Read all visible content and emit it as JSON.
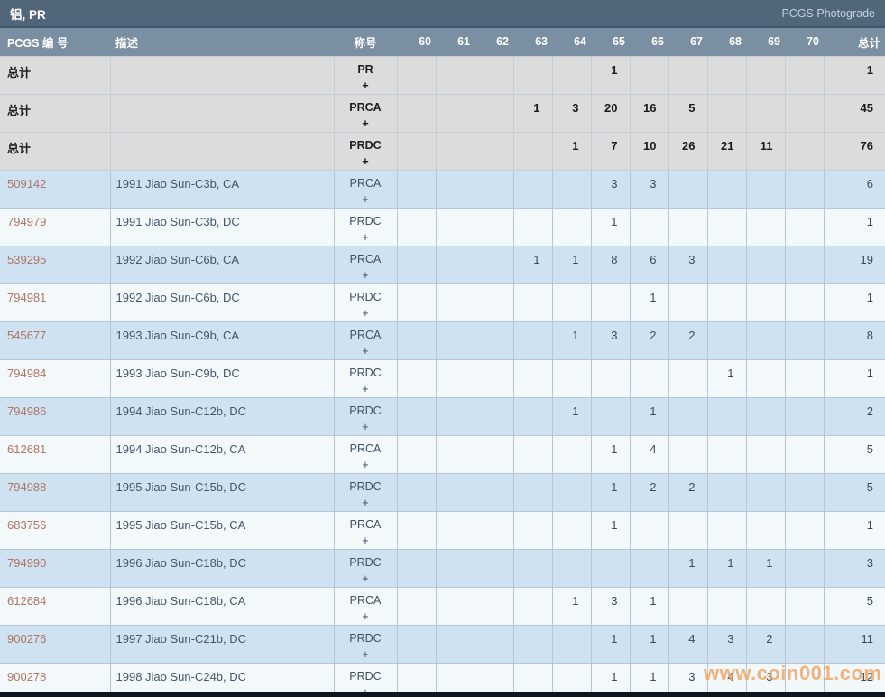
{
  "title_bar": {
    "title": "铝, PR",
    "link": "PCGS Photograde"
  },
  "table": {
    "columns": [
      "PCGS 编 号",
      "描述",
      "称号",
      "60",
      "61",
      "62",
      "63",
      "64",
      "65",
      "66",
      "67",
      "68",
      "69",
      "70",
      "总计"
    ],
    "total_label": "总计",
    "plus": "+",
    "total_rows": [
      {
        "designation": "PR",
        "grades": [
          "",
          "",
          "",
          "",
          "",
          "1",
          "",
          "",
          "",
          "",
          ""
        ],
        "total": "1"
      },
      {
        "designation": "PRCA",
        "grades": [
          "",
          "",
          "",
          "1",
          "3",
          "20",
          "16",
          "5",
          "",
          "",
          ""
        ],
        "total": "45"
      },
      {
        "designation": "PRDC",
        "grades": [
          "",
          "",
          "",
          "",
          "1",
          "7",
          "10",
          "26",
          "21",
          "11",
          ""
        ],
        "total": "76"
      }
    ],
    "rows": [
      {
        "number": "509142",
        "description": "1991 Jiao Sun-C3b, CA",
        "designation": "PRCA",
        "grades": [
          "",
          "",
          "",
          "",
          "",
          "3",
          "3",
          "",
          "",
          "",
          ""
        ],
        "total": "6"
      },
      {
        "number": "794979",
        "description": "1991 Jiao Sun-C3b, DC",
        "designation": "PRDC",
        "grades": [
          "",
          "",
          "",
          "",
          "",
          "1",
          "",
          "",
          "",
          "",
          ""
        ],
        "total": "1"
      },
      {
        "number": "539295",
        "description": "1992 Jiao Sun-C6b, CA",
        "designation": "PRCA",
        "grades": [
          "",
          "",
          "",
          "1",
          "1",
          "8",
          "6",
          "3",
          "",
          "",
          ""
        ],
        "total": "19"
      },
      {
        "number": "794981",
        "description": "1992 Jiao Sun-C6b, DC",
        "designation": "PRDC",
        "grades": [
          "",
          "",
          "",
          "",
          "",
          "",
          "1",
          "",
          "",
          "",
          ""
        ],
        "total": "1"
      },
      {
        "number": "545677",
        "description": "1993 Jiao Sun-C9b, CA",
        "designation": "PRCA",
        "grades": [
          "",
          "",
          "",
          "",
          "1",
          "3",
          "2",
          "2",
          "",
          "",
          ""
        ],
        "total": "8"
      },
      {
        "number": "794984",
        "description": "1993 Jiao Sun-C9b, DC",
        "designation": "PRDC",
        "grades": [
          "",
          "",
          "",
          "",
          "",
          "",
          "",
          "",
          "1",
          "",
          ""
        ],
        "total": "1"
      },
      {
        "number": "794986",
        "description": "1994 Jiao Sun-C12b, DC",
        "designation": "PRDC",
        "grades": [
          "",
          "",
          "",
          "",
          "1",
          "",
          "1",
          "",
          "",
          "",
          ""
        ],
        "total": "2"
      },
      {
        "number": "612681",
        "description": "1994 Jiao Sun-C12b, CA",
        "designation": "PRCA",
        "grades": [
          "",
          "",
          "",
          "",
          "",
          "1",
          "4",
          "",
          "",
          "",
          ""
        ],
        "total": "5"
      },
      {
        "number": "794988",
        "description": "1995 Jiao Sun-C15b, DC",
        "designation": "PRDC",
        "grades": [
          "",
          "",
          "",
          "",
          "",
          "1",
          "2",
          "2",
          "",
          "",
          ""
        ],
        "total": "5"
      },
      {
        "number": "683756",
        "description": "1995 Jiao Sun-C15b, CA",
        "designation": "PRCA",
        "grades": [
          "",
          "",
          "",
          "",
          "",
          "1",
          "",
          "",
          "",
          "",
          ""
        ],
        "total": "1"
      },
      {
        "number": "794990",
        "description": "1996 Jiao Sun-C18b, DC",
        "designation": "PRDC",
        "grades": [
          "",
          "",
          "",
          "",
          "",
          "",
          "",
          "1",
          "1",
          "1",
          ""
        ],
        "total": "3"
      },
      {
        "number": "612684",
        "description": "1996 Jiao Sun-C18b, CA",
        "designation": "PRCA",
        "grades": [
          "",
          "",
          "",
          "",
          "1",
          "3",
          "1",
          "",
          "",
          "",
          ""
        ],
        "total": "5"
      },
      {
        "number": "900276",
        "description": "1997 Jiao Sun-C21b, DC",
        "designation": "PRDC",
        "grades": [
          "",
          "",
          "",
          "",
          "",
          "1",
          "1",
          "4",
          "3",
          "2",
          ""
        ],
        "total": "11"
      },
      {
        "number": "900278",
        "description": "1998 Jiao Sun-C24b, DC",
        "designation": "PRDC",
        "grades": [
          "",
          "",
          "",
          "",
          "",
          "1",
          "1",
          "3",
          "4",
          "3",
          ""
        ],
        "total": "12"
      }
    ]
  },
  "watermark": "www.coin001.com",
  "colors": {
    "topbar_bg": "#516679",
    "header_bg": "#7b8fa2",
    "total_row_bg": "#dcdcdc",
    "row_blue_bg": "#cee2f1",
    "row_white_bg": "#f3f8fb",
    "border": "#b6c7d7",
    "pcgs_link": "#ae7565",
    "watermark_orange": "#f0a25d"
  }
}
